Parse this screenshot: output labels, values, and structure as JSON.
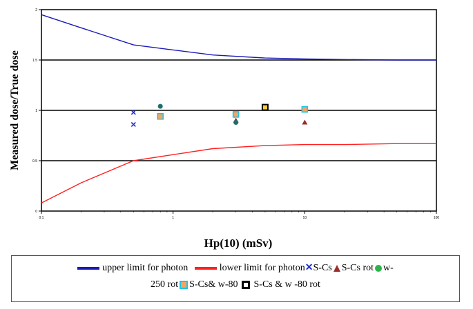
{
  "chart_data": {
    "type": "scatter",
    "title": "",
    "xlabel": "Hp(10) (mSv)",
    "ylabel": "Measured dose/True dose",
    "xscale": "log",
    "xlim": [
      0.1,
      100
    ],
    "ylim": [
      0,
      2
    ],
    "xticks": [
      "0.1",
      "1",
      "10",
      "100"
    ],
    "yticks": [
      "0",
      "0.5",
      "1",
      "1.5",
      "2"
    ],
    "grid": "horizontal at 0.5, 1, 1.5",
    "legend_position": "bottom",
    "series": [
      {
        "name": "upper limit for photon",
        "kind": "line",
        "color": "#1a1ab8",
        "x": [
          0.1,
          0.2,
          0.5,
          1,
          2,
          5,
          10,
          20,
          50,
          100
        ],
        "y": [
          1.95,
          1.82,
          1.65,
          1.6,
          1.55,
          1.52,
          1.51,
          1.505,
          1.5,
          1.5
        ]
      },
      {
        "name": "lower limit for photon",
        "kind": "line",
        "color": "#ff2020",
        "x": [
          0.1,
          0.2,
          0.5,
          1,
          2,
          5,
          10,
          20,
          50,
          100
        ],
        "y": [
          0.08,
          0.28,
          0.5,
          0.56,
          0.62,
          0.65,
          0.66,
          0.66,
          0.67,
          0.67
        ]
      },
      {
        "name": "S-Cs",
        "kind": "marker",
        "marker": "cross",
        "color": "#1f2fd8",
        "x": [
          0.5,
          0.5,
          0.8,
          3,
          10
        ],
        "y": [
          0.98,
          0.86,
          0.95,
          0.95,
          1.01
        ]
      },
      {
        "name": "S-Cs rot",
        "kind": "marker",
        "marker": "triangle",
        "color": "#9b2d2d",
        "x": [
          0.8,
          3,
          10
        ],
        "y": [
          0.93,
          0.9,
          0.88
        ]
      },
      {
        "name": "w-250 rot",
        "kind": "marker",
        "marker": "circle",
        "color": "#1b6f6f",
        "x": [
          0.8,
          3
        ],
        "y": [
          1.04,
          0.88
        ]
      },
      {
        "name": "S-Cs& w-80",
        "kind": "marker",
        "marker": "square",
        "color": "#20c4e8",
        "x": [
          0.8,
          3,
          10
        ],
        "y": [
          0.94,
          0.96,
          1.01
        ]
      },
      {
        "name": "S-Cs & w -80 rot",
        "kind": "marker",
        "marker": "square-black",
        "color": "#000000",
        "x": [
          5
        ],
        "y": [
          1.03
        ]
      }
    ]
  },
  "legend": {
    "upper": "upper limit for photon",
    "lower": "lower limit for photon",
    "scs": "S-Cs",
    "scsrot": "S-Cs rot",
    "w250a": "w-",
    "w250b": "250 rot",
    "scsw80": "S-Cs& w-80 ",
    "scsw80rot": " S-Cs & w -80 rot"
  },
  "colors": {
    "upper_line": "#1a1ab8",
    "lower_line": "#ff2020"
  }
}
